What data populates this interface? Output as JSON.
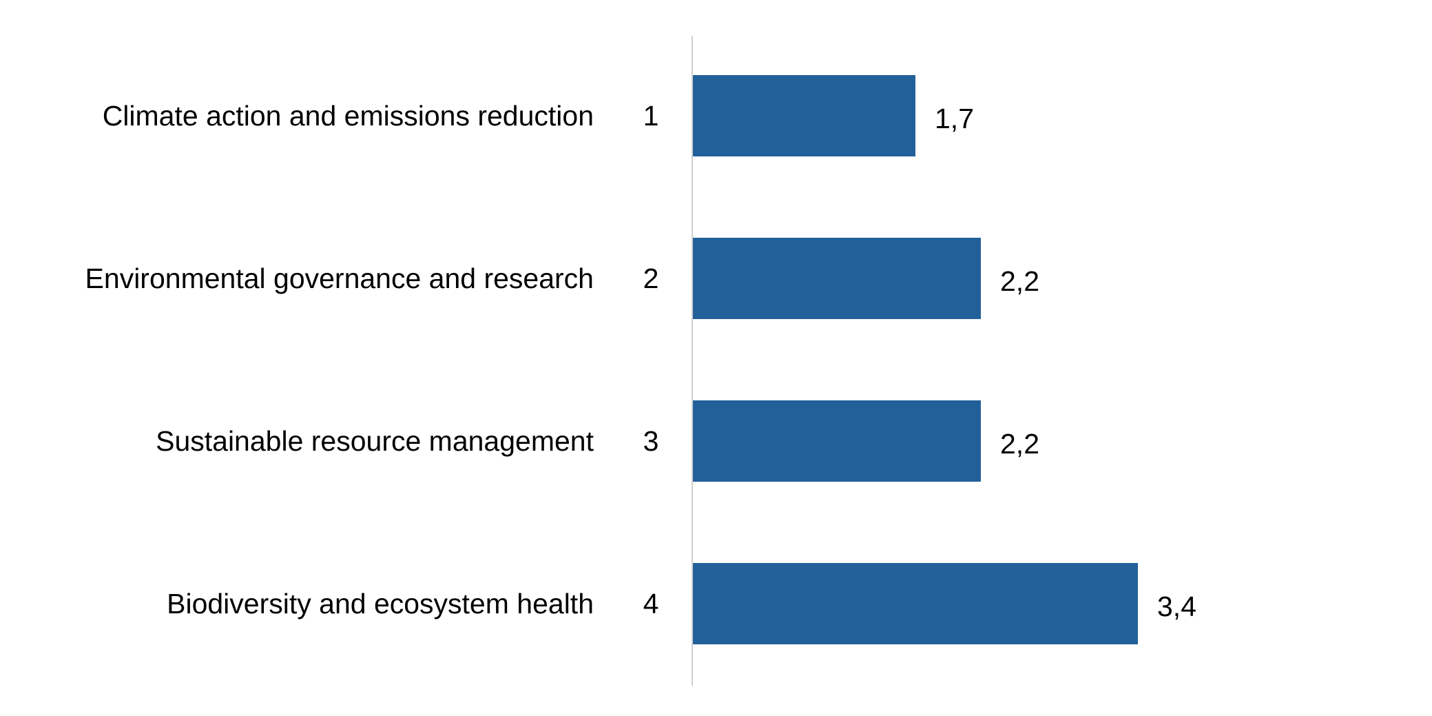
{
  "chart_data": {
    "type": "bar",
    "orientation": "horizontal",
    "categories": [
      "Climate action and emissions reduction",
      "Environmental governance and research",
      "Sustainable resource management",
      "Biodiversity and ecosystem health"
    ],
    "ranks": [
      "1",
      "2",
      "3",
      "4"
    ],
    "values": [
      1.7,
      2.2,
      2.2,
      3.4
    ],
    "value_labels": [
      "1,7",
      "2,2",
      "2,2",
      "3,4"
    ],
    "xlim": [
      0,
      4
    ],
    "grid": false,
    "legend": "none",
    "colors": {
      "bar": "#22609A",
      "axis": "#D0D0D0",
      "text": "#000000"
    }
  }
}
